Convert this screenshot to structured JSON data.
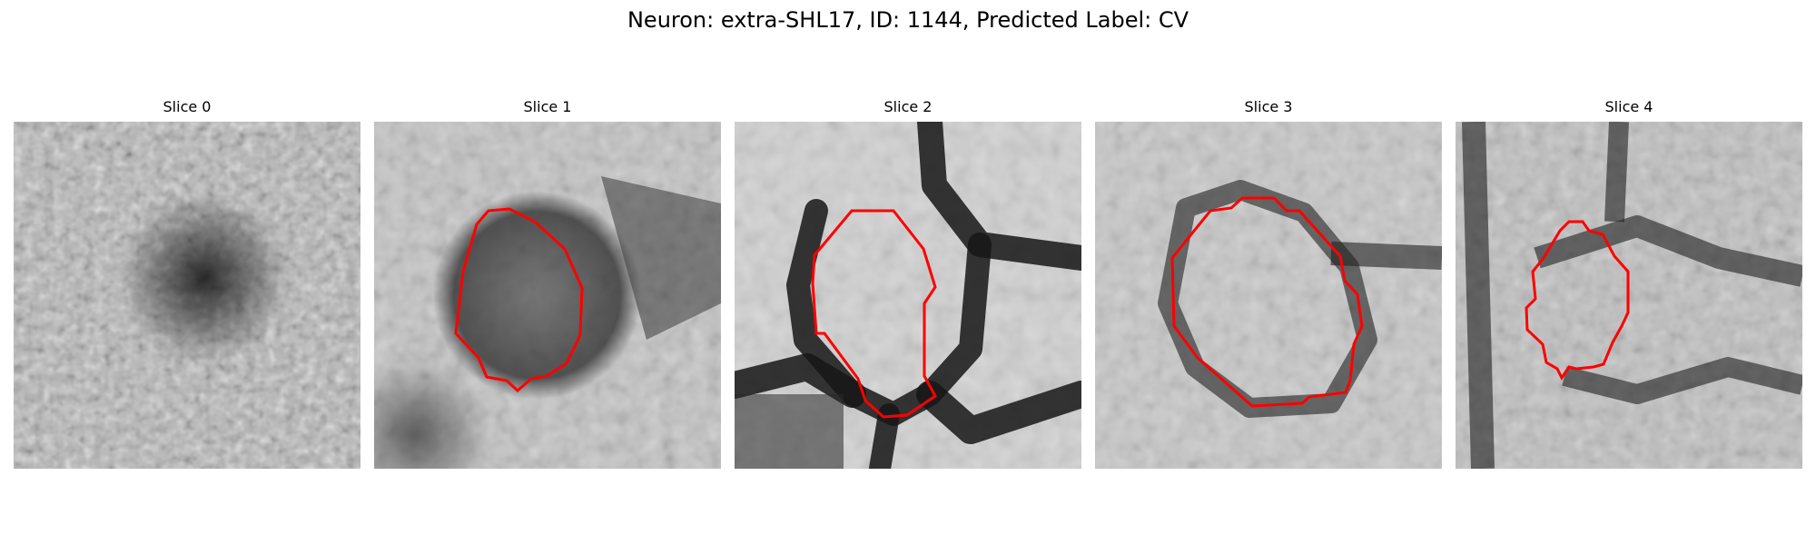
{
  "title": "Neuron: extra-SHL17, ID: 1144, Predicted Label: CV",
  "panels": [
    {
      "label": "Slice 0",
      "has_contour": false
    },
    {
      "label": "Slice 1",
      "has_contour": true
    },
    {
      "label": "Slice 2",
      "has_contour": true
    },
    {
      "label": "Slice 3",
      "has_contour": true
    },
    {
      "label": "Slice 4",
      "has_contour": true
    }
  ],
  "colors": {
    "contour": "#ff0000",
    "background": "#ffffff"
  },
  "image_style": "grayscale electron microscopy patch"
}
